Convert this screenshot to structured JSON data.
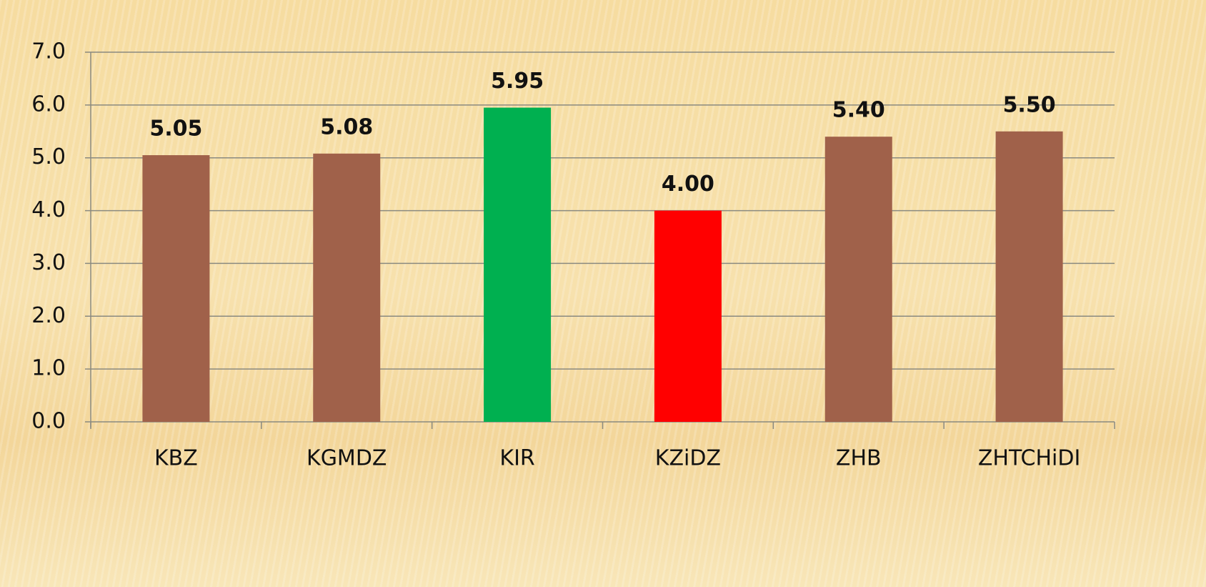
{
  "chart_data": {
    "type": "bar",
    "categories": [
      "KBZ",
      "KGMDZ",
      "KIR",
      "KZiDZ",
      "ZHB",
      "ZHTCHiDI"
    ],
    "values": [
      5.05,
      5.08,
      5.95,
      4.0,
      5.4,
      5.5
    ],
    "value_labels": [
      "5.05",
      "5.08",
      "5.95",
      "4.00",
      "5.40",
      "5.50"
    ],
    "colors": [
      "#a0614a",
      "#a0614a",
      "#00b050",
      "#ff0000",
      "#a0614a",
      "#a0614a"
    ],
    "ylim": [
      0,
      7
    ],
    "yticks": [
      {
        "value": 0,
        "label": "0.0"
      },
      {
        "value": 1,
        "label": "1.0"
      },
      {
        "value": 2,
        "label": "2.0"
      },
      {
        "value": 3,
        "label": "3.0"
      },
      {
        "value": 4,
        "label": "4.0"
      },
      {
        "value": 5,
        "label": "5.0"
      },
      {
        "value": 6,
        "label": "6.0"
      },
      {
        "value": 7,
        "label": "7.0"
      }
    ],
    "grid": true
  }
}
